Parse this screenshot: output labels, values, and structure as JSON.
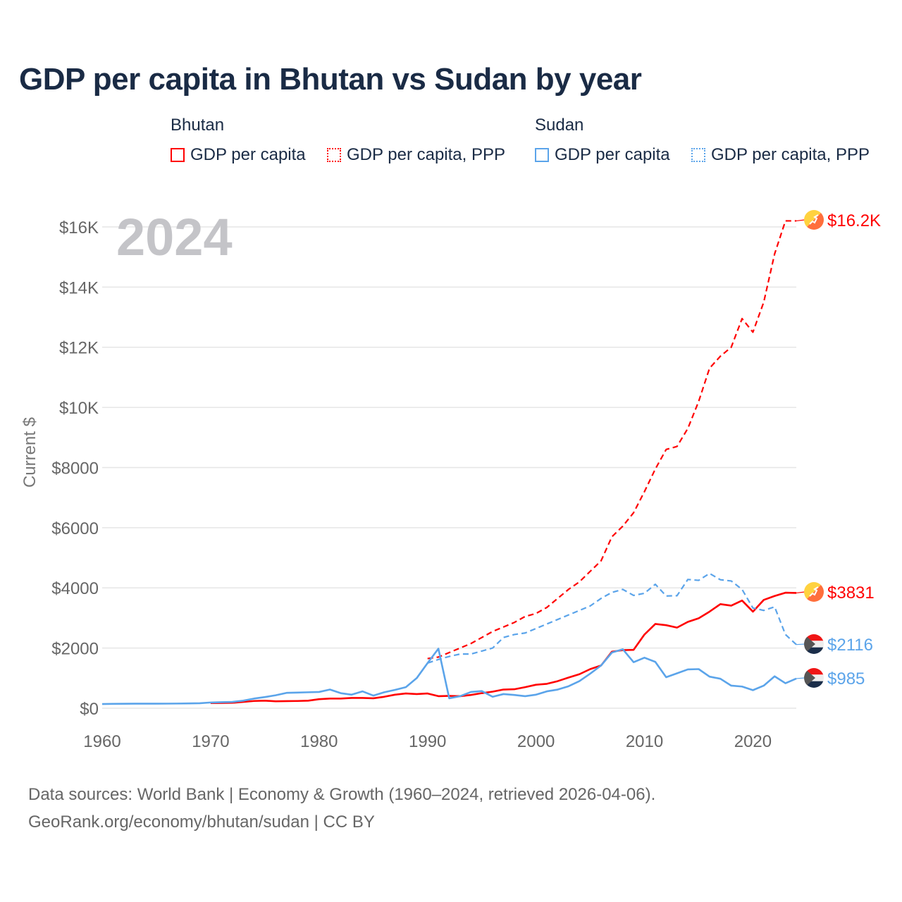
{
  "chart_data": {
    "type": "line",
    "title": "GDP per capita in Bhutan vs Sudan by year",
    "ylabel": "Current $",
    "xlabel": "",
    "year_watermark": "2024",
    "xlim": [
      1960,
      2024
    ],
    "ylim": [
      0,
      16500
    ],
    "x_ticks": [
      1960,
      1970,
      1980,
      1990,
      2000,
      2010,
      2020
    ],
    "x_tick_labels": [
      "1960",
      "1970",
      "1980",
      "1990",
      "2000",
      "2010",
      "2020"
    ],
    "y_ticks": [
      0,
      2000,
      4000,
      6000,
      8000,
      10000,
      12000,
      14000,
      16000
    ],
    "y_tick_labels": [
      "$0",
      "$2000",
      "$4000",
      "$6000",
      "$8000",
      "$10K",
      "$12K",
      "$14K",
      "$16K"
    ],
    "grid": true,
    "legend": {
      "placement": "top",
      "groups": [
        {
          "name": "Bhutan",
          "items": [
            "GDP per capita",
            "GDP per capita, PPP"
          ]
        },
        {
          "name": "Sudan",
          "items": [
            "GDP per capita",
            "GDP per capita, PPP"
          ]
        }
      ]
    },
    "series": [
      {
        "name": "Bhutan GDP per capita",
        "country": "Bhutan",
        "color": "#ff0000",
        "dash": false,
        "end_label": "$3831",
        "start": 1970,
        "values": [
          170,
          175,
          180,
          210,
          240,
          250,
          230,
          235,
          240,
          250,
          300,
          320,
          320,
          340,
          340,
          330,
          380,
          450,
          490,
          470,
          490,
          400,
          410,
          400,
          440,
          500,
          550,
          620,
          630,
          700,
          780,
          810,
          900,
          1020,
          1130,
          1300,
          1420,
          1880,
          1930,
          1940,
          2450,
          2800,
          2760,
          2680,
          2870,
          2990,
          3210,
          3460,
          3410,
          3580,
          3210,
          3600,
          3730,
          3840,
          3831
        ]
      },
      {
        "name": "Bhutan GDP per capita, PPP",
        "country": "Bhutan",
        "color": "#ff0000",
        "dash": true,
        "end_label": "$16.2K",
        "start": 1990,
        "values": [
          1650,
          1700,
          1850,
          2000,
          2150,
          2350,
          2550,
          2700,
          2850,
          3050,
          3150,
          3350,
          3650,
          3950,
          4200,
          4550,
          4900,
          5700,
          6050,
          6500,
          7200,
          7950,
          8600,
          8700,
          9300,
          10200,
          11300,
          11700,
          12000,
          12950,
          12500,
          13500,
          15100,
          16200,
          16200
        ]
      },
      {
        "name": "Sudan GDP per capita",
        "country": "Sudan",
        "color": "#5ba4ea",
        "dash": false,
        "end_label": "$985",
        "start": 1960,
        "values": [
          140,
          145,
          148,
          150,
          150,
          150,
          152,
          155,
          160,
          165,
          190,
          200,
          210,
          250,
          320,
          370,
          430,
          510,
          520,
          530,
          540,
          620,
          500,
          450,
          560,
          420,
          530,
          610,
          700,
          1000,
          1500,
          1980,
          330,
          400,
          540,
          570,
          380,
          470,
          440,
          400,
          450,
          560,
          620,
          730,
          900,
          1150,
          1420,
          1850,
          1960,
          1530,
          1680,
          1540,
          1030,
          1160,
          1290,
          1300,
          1050,
          980,
          750,
          720,
          600,
          750,
          1060,
          830,
          985
        ]
      },
      {
        "name": "Sudan GDP per capita, PPP",
        "country": "Sudan",
        "color": "#5ba4ea",
        "dash": true,
        "end_label": "$2116",
        "start": 1990,
        "values": [
          1500,
          1620,
          1720,
          1800,
          1800,
          1900,
          2000,
          2350,
          2450,
          2500,
          2650,
          2800,
          2950,
          3100,
          3250,
          3400,
          3650,
          3850,
          3950,
          3750,
          3820,
          4120,
          3730,
          3740,
          4280,
          4250,
          4480,
          4270,
          4230,
          3950,
          3330,
          3250,
          3370,
          2450,
          2116
        ]
      }
    ]
  },
  "source": {
    "line1": "Data sources: World Bank | Economy & Growth (1960–2024, retrieved 2026-04-06).",
    "line2": "GeoRank.org/economy/bhutan/sudan | CC BY"
  },
  "colors": {
    "bhutan": "#ff0000",
    "sudan": "#5ba4ea",
    "title": "#1a2b45"
  }
}
